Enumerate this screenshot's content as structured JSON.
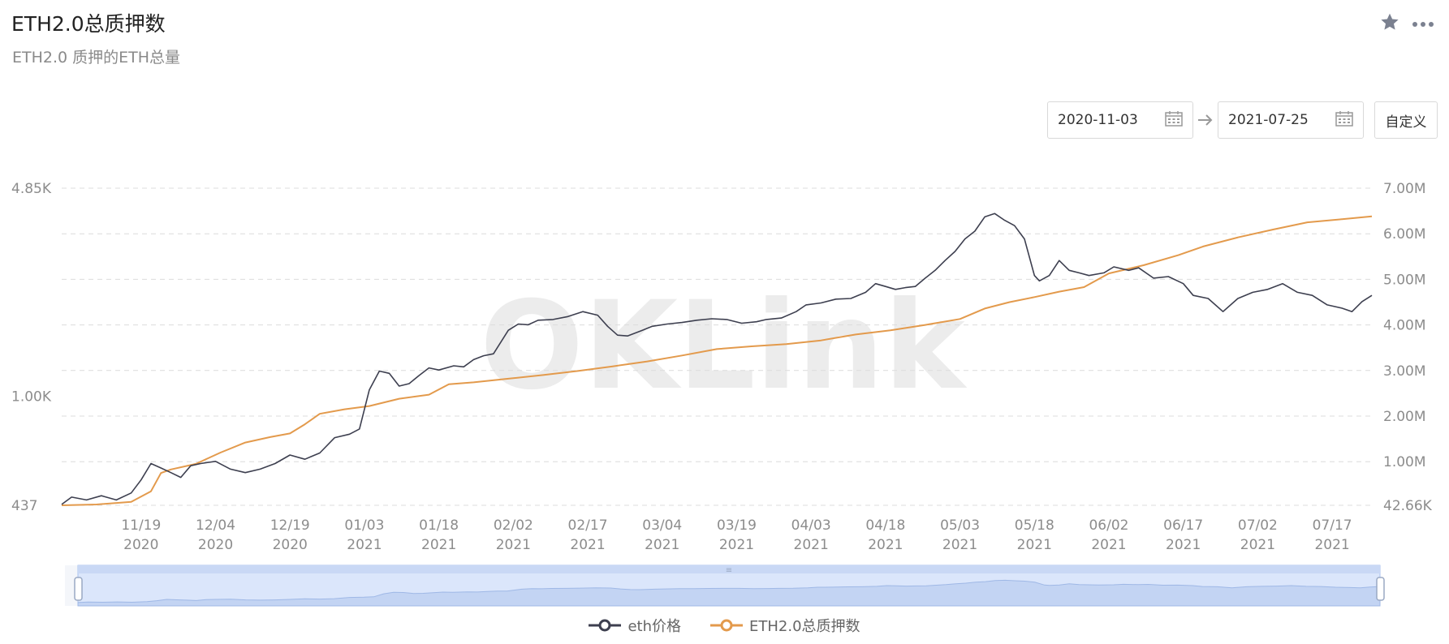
{
  "header": {
    "title": "ETH2.0总质押数",
    "subtitle": "ETH2.0 质押的ETH总量"
  },
  "controls": {
    "start_date": "2020-11-03",
    "end_date": "2021-07-25",
    "custom_label": "自定义"
  },
  "icons": [
    "star-icon",
    "more-icon",
    "calendar-icon",
    "arrow-right-icon"
  ],
  "colors": {
    "eth_price": "#3d3f4f",
    "staked": "#e39a4c",
    "grid": "#dcdcdc",
    "axis_text": "#8c8c8c",
    "slider_fill": "#dbe6fb",
    "slider_border": "#a9c1ef"
  },
  "chart_data": {
    "type": "line",
    "watermark": "OKLink",
    "x_ticks": [
      {
        "date": "11/19",
        "year": "2020"
      },
      {
        "date": "12/04",
        "year": "2020"
      },
      {
        "date": "12/19",
        "year": "2020"
      },
      {
        "date": "01/03",
        "year": "2021"
      },
      {
        "date": "01/18",
        "year": "2021"
      },
      {
        "date": "02/02",
        "year": "2021"
      },
      {
        "date": "02/17",
        "year": "2021"
      },
      {
        "date": "03/04",
        "year": "2021"
      },
      {
        "date": "03/19",
        "year": "2021"
      },
      {
        "date": "04/03",
        "year": "2021"
      },
      {
        "date": "04/18",
        "year": "2021"
      },
      {
        "date": "05/03",
        "year": "2021"
      },
      {
        "date": "05/18",
        "year": "2021"
      },
      {
        "date": "06/02",
        "year": "2021"
      },
      {
        "date": "06/17",
        "year": "2021"
      },
      {
        "date": "07/02",
        "year": "2021"
      },
      {
        "date": "07/17",
        "year": "2021"
      }
    ],
    "left_axis": {
      "labels": [
        "4.85K",
        "1.00K",
        "437"
      ],
      "scale": "log",
      "min": 437,
      "max": 4850
    },
    "right_axis": {
      "labels": [
        "7.00M",
        "6.00M",
        "5.00M",
        "4.00M",
        "3.00M",
        "2.00M",
        "1.00M",
        "42.66K"
      ],
      "min": 42660,
      "max": 7000000
    },
    "grid": true,
    "legend_position": "bottom-center",
    "series": [
      {
        "name": "eth价格",
        "axis": "left",
        "x": [
          "2020-11-03",
          "2020-11-05",
          "2020-11-08",
          "2020-11-11",
          "2020-11-14",
          "2020-11-17",
          "2020-11-19",
          "2020-11-21",
          "2020-11-23",
          "2020-11-25",
          "2020-11-27",
          "2020-11-29",
          "2020-12-01",
          "2020-12-04",
          "2020-12-07",
          "2020-12-10",
          "2020-12-13",
          "2020-12-16",
          "2020-12-19",
          "2020-12-22",
          "2020-12-25",
          "2020-12-28",
          "2020-12-31",
          "2021-01-02",
          "2021-01-04",
          "2021-01-06",
          "2021-01-08",
          "2021-01-10",
          "2021-01-12",
          "2021-01-14",
          "2021-01-16",
          "2021-01-18",
          "2021-01-21",
          "2021-01-23",
          "2021-01-25",
          "2021-01-27",
          "2021-01-29",
          "2021-02-01",
          "2021-02-03",
          "2021-02-05",
          "2021-02-07",
          "2021-02-10",
          "2021-02-13",
          "2021-02-16",
          "2021-02-19",
          "2021-02-21",
          "2021-02-23",
          "2021-02-25",
          "2021-02-28",
          "2021-03-02",
          "2021-03-05",
          "2021-03-08",
          "2021-03-11",
          "2021-03-14",
          "2021-03-17",
          "2021-03-20",
          "2021-03-23",
          "2021-03-25",
          "2021-03-28",
          "2021-03-31",
          "2021-04-02",
          "2021-04-05",
          "2021-04-08",
          "2021-04-11",
          "2021-04-14",
          "2021-04-16",
          "2021-04-18",
          "2021-04-20",
          "2021-04-22",
          "2021-04-24",
          "2021-04-26",
          "2021-04-28",
          "2021-04-30",
          "2021-05-02",
          "2021-05-04",
          "2021-05-06",
          "2021-05-08",
          "2021-05-10",
          "2021-05-12",
          "2021-05-14",
          "2021-05-16",
          "2021-05-18",
          "2021-05-19",
          "2021-05-21",
          "2021-05-23",
          "2021-05-25",
          "2021-05-27",
          "2021-05-29",
          "2021-06-01",
          "2021-06-03",
          "2021-06-06",
          "2021-06-08",
          "2021-06-11",
          "2021-06-14",
          "2021-06-17",
          "2021-06-19",
          "2021-06-22",
          "2021-06-25",
          "2021-06-28",
          "2021-07-01",
          "2021-07-04",
          "2021-07-07",
          "2021-07-10",
          "2021-07-13",
          "2021-07-16",
          "2021-07-19",
          "2021-07-21",
          "2021-07-23",
          "2021-07-25"
        ],
        "values": [
          440,
          465,
          455,
          470,
          455,
          480,
          530,
          600,
          580,
          560,
          540,
          590,
          600,
          610,
          575,
          560,
          575,
          600,
          640,
          620,
          650,
          730,
          750,
          780,
          1050,
          1210,
          1190,
          1080,
          1100,
          1170,
          1240,
          1220,
          1260,
          1250,
          1320,
          1360,
          1380,
          1650,
          1730,
          1720,
          1780,
          1790,
          1830,
          1900,
          1850,
          1700,
          1590,
          1580,
          1650,
          1700,
          1730,
          1750,
          1780,
          1800,
          1790,
          1740,
          1760,
          1790,
          1810,
          1900,
          2000,
          2030,
          2090,
          2100,
          2200,
          2350,
          2300,
          2250,
          2280,
          2300,
          2450,
          2600,
          2800,
          3000,
          3300,
          3500,
          3900,
          4000,
          3800,
          3650,
          3300,
          2500,
          2400,
          2500,
          2800,
          2600,
          2550,
          2500,
          2550,
          2670,
          2600,
          2650,
          2450,
          2480,
          2350,
          2150,
          2100,
          1900,
          2100,
          2200,
          2250,
          2350,
          2200,
          2150,
          2000,
          1950,
          1900,
          2050,
          2150
        ]
      },
      {
        "name": "ETH2.0总质押数",
        "axis": "right",
        "x": [
          "2020-11-03",
          "2020-11-10",
          "2020-11-17",
          "2020-11-21",
          "2020-11-23",
          "2020-11-25",
          "2020-11-30",
          "2020-12-05",
          "2020-12-10",
          "2020-12-15",
          "2020-12-19",
          "2020-12-22",
          "2020-12-25",
          "2020-12-30",
          "2021-01-04",
          "2021-01-10",
          "2021-01-16",
          "2021-01-20",
          "2021-01-25",
          "2021-02-01",
          "2021-02-08",
          "2021-02-15",
          "2021-02-22",
          "2021-03-01",
          "2021-03-08",
          "2021-03-15",
          "2021-03-22",
          "2021-03-29",
          "2021-04-05",
          "2021-04-12",
          "2021-04-19",
          "2021-04-26",
          "2021-05-03",
          "2021-05-08",
          "2021-05-13",
          "2021-05-18",
          "2021-05-23",
          "2021-05-28",
          "2021-06-02",
          "2021-06-09",
          "2021-06-16",
          "2021-06-21",
          "2021-06-28",
          "2021-07-05",
          "2021-07-12",
          "2021-07-19",
          "2021-07-25"
        ],
        "values": [
          42660,
          60000,
          120000,
          350000,
          750000,
          830000,
          950000,
          1200000,
          1420000,
          1540000,
          1620000,
          1820000,
          2050000,
          2150000,
          2220000,
          2380000,
          2470000,
          2700000,
          2740000,
          2820000,
          2900000,
          2990000,
          3090000,
          3200000,
          3330000,
          3470000,
          3530000,
          3580000,
          3660000,
          3790000,
          3880000,
          4000000,
          4130000,
          4360000,
          4500000,
          4610000,
          4730000,
          4830000,
          5130000,
          5310000,
          5530000,
          5720000,
          5920000,
          6090000,
          6250000,
          6320000,
          6380000
        ]
      }
    ]
  },
  "slider": {
    "handle_label": "≡"
  }
}
